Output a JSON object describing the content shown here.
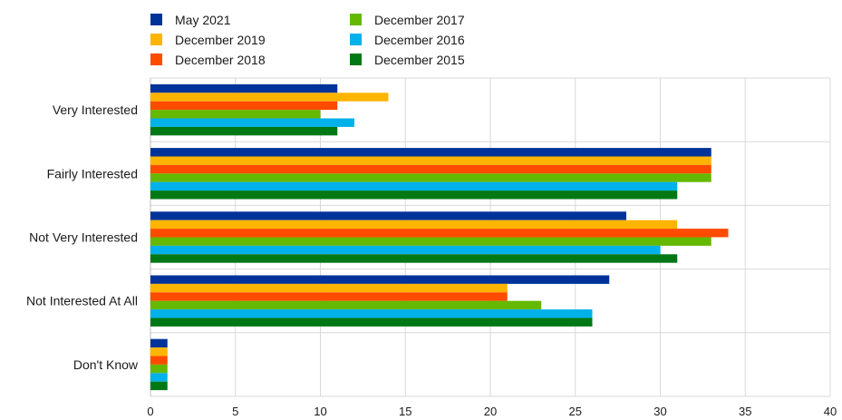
{
  "chart_data": {
    "type": "bar",
    "orientation": "horizontal",
    "categories": [
      "Very Interested",
      "Fairly Interested",
      "Not Very Interested",
      "Not Interested At All",
      "Don't Know"
    ],
    "series": [
      {
        "name": "May 2021",
        "color": "#003399",
        "values": [
          11,
          33,
          28,
          27,
          1
        ]
      },
      {
        "name": "December 2019",
        "color": "#FFB400",
        "values": [
          14,
          33,
          31,
          21,
          1
        ]
      },
      {
        "name": "December 2018",
        "color": "#FF4B00",
        "values": [
          11,
          33,
          34,
          21,
          1
        ]
      },
      {
        "name": "December 2017",
        "color": "#65B800",
        "values": [
          10,
          33,
          33,
          23,
          1
        ]
      },
      {
        "name": "December 2016",
        "color": "#00B1EA",
        "values": [
          12,
          31,
          30,
          26,
          1
        ]
      },
      {
        "name": "December 2015",
        "color": "#007816",
        "values": [
          11,
          31,
          31,
          26,
          1
        ]
      }
    ],
    "xlim": [
      0,
      40
    ],
    "xticks": [
      0,
      5,
      10,
      15,
      20,
      25,
      30,
      35,
      40
    ],
    "title": "",
    "xlabel": "",
    "ylabel": "",
    "grid": true,
    "legend_position": "top-left"
  }
}
